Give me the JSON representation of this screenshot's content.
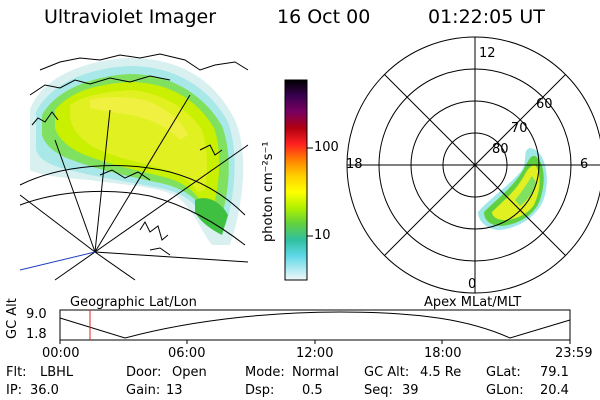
{
  "header": {
    "title": "Ultraviolet Imager",
    "date": "16 Oct 00",
    "time": "01:22:05 UT"
  },
  "colorbar": {
    "unit_label": "photon cm⁻²s⁻¹",
    "ticks": [
      "100",
      "10"
    ],
    "colors": [
      "#000000",
      "#2a0040",
      "#5a006a",
      "#8c0030",
      "#c00000",
      "#ff2020",
      "#ff8000",
      "#ffb000",
      "#ffff00",
      "#c8f000",
      "#80e040",
      "#40c040",
      "#20c0a0",
      "#40d0e0",
      "#a0e8f0",
      "#e8f8f8"
    ]
  },
  "left_map": {
    "label": "Geographic Lat/Lon"
  },
  "polar_plot": {
    "label": "Apex MLat/MLT",
    "mlt_labels": [
      "12",
      "18",
      "6",
      "0"
    ],
    "lat_labels": [
      "60",
      "70",
      "80"
    ]
  },
  "altitude_track": {
    "axis_label": "GC Alt",
    "y_ticks": [
      "9.0",
      "1.8"
    ],
    "x_ticks": [
      "00:00",
      "06:00",
      "12:00",
      "18:00",
      "23:59"
    ]
  },
  "footer": {
    "row1": [
      {
        "label": "Flt:",
        "value": "LBHL"
      },
      {
        "label": "Door:",
        "value": "Open"
      },
      {
        "label": "Mode:",
        "value": "Normal"
      },
      {
        "label": "GC Alt:",
        "value": "4.5 Re"
      },
      {
        "label": "GLat:",
        "value": "79.1"
      }
    ],
    "row2": [
      {
        "label": "IP:",
        "value": "36.0"
      },
      {
        "label": "Gain:",
        "value": "13"
      },
      {
        "label": "Dsp:",
        "value": "0.5"
      },
      {
        "label": "Seq:",
        "value": "39"
      },
      {
        "label": "GLon:",
        "value": "20.4"
      }
    ]
  }
}
